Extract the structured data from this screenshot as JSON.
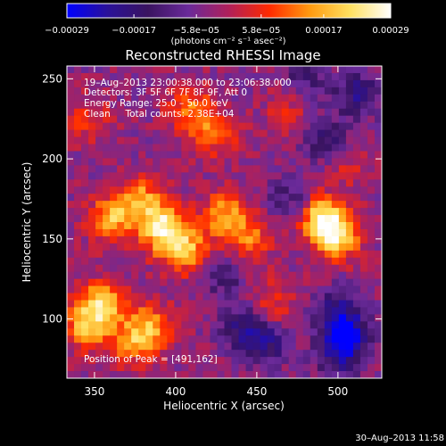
{
  "chart_data": {
    "type": "heatmap",
    "title": "Reconstructed RHESSI Image",
    "xlabel": "Heliocentric X (arcsec)",
    "ylabel": "Heliocentric Y (arcsec)",
    "xlim": [
      333,
      527
    ],
    "ylim": [
      63,
      258
    ],
    "x_ticks": [
      350,
      400,
      450,
      500
    ],
    "y_ticks": [
      100,
      150,
      200,
      250
    ],
    "x_tick_labels": [
      "350",
      "400",
      "450",
      "500"
    ],
    "y_tick_labels": [
      "100",
      "150",
      "200",
      "250"
    ],
    "colorbar": {
      "range": [
        -0.00029,
        0.00029
      ],
      "ticks": [
        -0.00029,
        -0.00017,
        -5.8e-05,
        5.8e-05,
        0.00017,
        0.00029
      ],
      "tick_labels": [
        "−0.00029",
        "−0.00017",
        "−5.8e−05",
        "5.8e−05",
        "0.00017",
        "0.00029"
      ],
      "units": "(photons cm⁻² s⁻¹ asec⁻²)",
      "colors": [
        "#0000ff",
        "#2a1199",
        "#3a1460",
        "#6a2a9a",
        "#b0205a",
        "#ff2a00",
        "#ff9a10",
        "#ffe060",
        "#ffffff"
      ]
    },
    "annotations": {
      "time_range": "19–Aug–2013 23:00:38.000 to 23:06:38.000",
      "detectors": "Detectors: 3F 5F 6F 7F 8F 9F, Att 0",
      "energy": "Energy Range: 25.0 – 50.0 keV",
      "clean": "Clean     Total counts: 2.38E+04",
      "peak": "Position of Peak = [491,162]"
    },
    "features": [
      {
        "x": 392,
        "y": 157,
        "value": 0.00027
      },
      {
        "x": 405,
        "y": 143,
        "value": 0.00022
      },
      {
        "x": 360,
        "y": 162,
        "value": 0.0002
      },
      {
        "x": 378,
        "y": 175,
        "value": 0.00018
      },
      {
        "x": 430,
        "y": 165,
        "value": 0.00019
      },
      {
        "x": 445,
        "y": 150,
        "value": 0.00015
      },
      {
        "x": 491,
        "y": 162,
        "value": 0.00029
      },
      {
        "x": 500,
        "y": 150,
        "value": 0.0002
      },
      {
        "x": 410,
        "y": 230,
        "value": 0.00016
      },
      {
        "x": 425,
        "y": 215,
        "value": 0.00012
      },
      {
        "x": 355,
        "y": 110,
        "value": 0.00022
      },
      {
        "x": 345,
        "y": 95,
        "value": 0.0002
      },
      {
        "x": 385,
        "y": 95,
        "value": 0.00018
      },
      {
        "x": 372,
        "y": 85,
        "value": 0.00015
      },
      {
        "x": 460,
        "y": 110,
        "value": 0.0001
      },
      {
        "x": 345,
        "y": 225,
        "value": 0.0001
      },
      {
        "x": 470,
        "y": 230,
        "value": 8e-05
      },
      {
        "x": 505,
        "y": 195,
        "value": 6e-05
      },
      {
        "x": 455,
        "y": 85,
        "value": -0.00015
      },
      {
        "x": 505,
        "y": 90,
        "value": -0.00022
      },
      {
        "x": 440,
        "y": 95,
        "value": -0.00012
      },
      {
        "x": 500,
        "y": 105,
        "value": -0.00014
      },
      {
        "x": 512,
        "y": 240,
        "value": -0.00015
      },
      {
        "x": 480,
        "y": 250,
        "value": -0.0001
      },
      {
        "x": 492,
        "y": 212,
        "value": -0.00012
      },
      {
        "x": 470,
        "y": 175,
        "value": -0.0001
      },
      {
        "x": 430,
        "y": 125,
        "value": -8e-05
      },
      {
        "x": 500,
        "y": 75,
        "value": -0.00012
      }
    ],
    "background_value": -3.5e-05
  },
  "footer": {
    "date": "30–Aug–2013 11:58"
  }
}
